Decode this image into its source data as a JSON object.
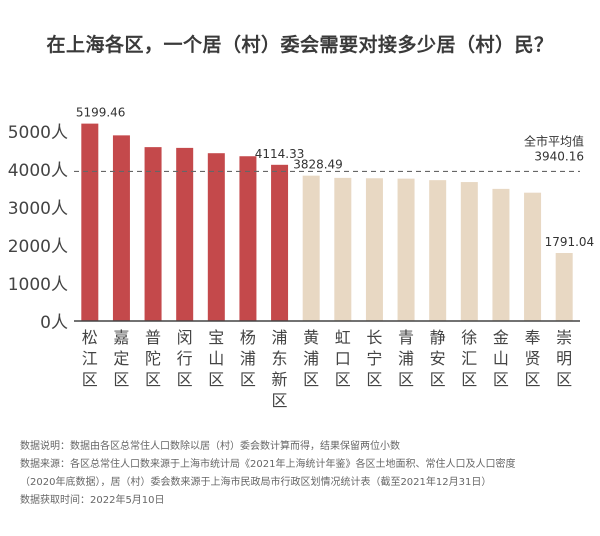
{
  "title": "在上海各区，一个居（村）委会需要对接多少居（村）民？",
  "chart_data": {
    "type": "bar",
    "categories": [
      "松江区",
      "嘉定区",
      "普陀区",
      "闵行区",
      "宝山区",
      "杨浦区",
      "浦东新区",
      "黄浦区",
      "虹口区",
      "长宁区",
      "青浦区",
      "静安区",
      "徐汇区",
      "金山区",
      "奉贤区",
      "崇明区"
    ],
    "values": [
      5199.46,
      4890,
      4580,
      4560,
      4420,
      4340,
      4114.33,
      3828.49,
      3770,
      3760,
      3750,
      3710,
      3660,
      3480,
      3380,
      1791.04
    ],
    "highlight_count": 7,
    "data_labels": [
      {
        "index": 0,
        "text": "5199.46"
      },
      {
        "index": 6,
        "text": "4114.33"
      },
      {
        "index": 7,
        "text": "3828.49"
      },
      {
        "index": 15,
        "text": "1791.04"
      }
    ],
    "y_ticks": [
      0,
      1000,
      2000,
      3000,
      4000,
      5000
    ],
    "y_tick_labels": [
      "0人",
      "1000人",
      "2000人",
      "3000人",
      "4000人",
      "5000人"
    ],
    "ylim": [
      0,
      5400
    ],
    "reference_line": {
      "label": "全市平均值",
      "value_label": "3940.16",
      "value": 3940.16
    },
    "colors": {
      "highlight": "#c4494b",
      "normal": "#e8d8c3",
      "reference": "#666666",
      "axis": "#444444"
    }
  },
  "notes": [
    "数据说明：数据由各区总常住人口数除以居（村）委会数计算而得，结果保留两位小数",
    "数据来源：各区总常住人口数来源于上海市统计局《2021年上海统计年鉴》各区土地面积、常住人口及人口密度",
    "（2020年底数据），居（村）委会数来源于上海市民政局市行政区划情况统计表（截至2021年12月31日）",
    "数据获取时间：2022年5月10日"
  ]
}
